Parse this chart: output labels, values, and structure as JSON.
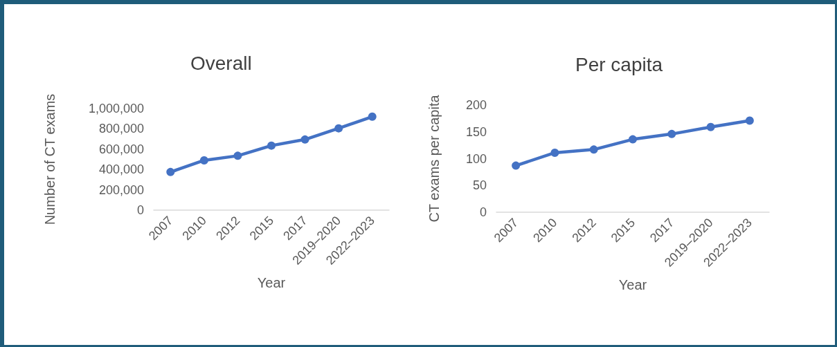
{
  "chart_data": [
    {
      "type": "line",
      "title": "Overall",
      "xlabel": "Year",
      "ylabel": "Number of CT exams",
      "categories": [
        "2007",
        "2010",
        "2012",
        "2015",
        "2017",
        "2019–2020",
        "2022–2023"
      ],
      "series": [
        {
          "color": "#4472c4",
          "values": [
            375000,
            490000,
            535000,
            635000,
            695000,
            805000,
            920000
          ]
        }
      ],
      "ylim": [
        0,
        1000000
      ],
      "yticks": [
        0,
        {
          "value": 200000,
          "label": "200,000"
        },
        {
          "value": 400000,
          "label": "400,000"
        },
        {
          "value": 600000,
          "label": "600,000"
        },
        {
          "value": 800000,
          "label": "800,000"
        },
        {
          "value": 1000000,
          "label": "1,000,000"
        }
      ],
      "grid": false,
      "marker": "circle",
      "line_style": "solid"
    },
    {
      "type": "line",
      "title": "Per capita",
      "xlabel": "Year",
      "ylabel": "CT exams per capita",
      "categories": [
        "2007",
        "2010",
        "2012",
        "2015",
        "2017",
        "2019–2020",
        "2022–2023"
      ],
      "series": [
        {
          "color": "#4472c4",
          "values": [
            87,
            111,
            117,
            136,
            146,
            159,
            171
          ]
        }
      ],
      "ylim": [
        0,
        200
      ],
      "yticks": [
        0,
        50,
        100,
        150,
        200
      ],
      "grid": false,
      "marker": "circle",
      "line_style": "solid"
    }
  ]
}
